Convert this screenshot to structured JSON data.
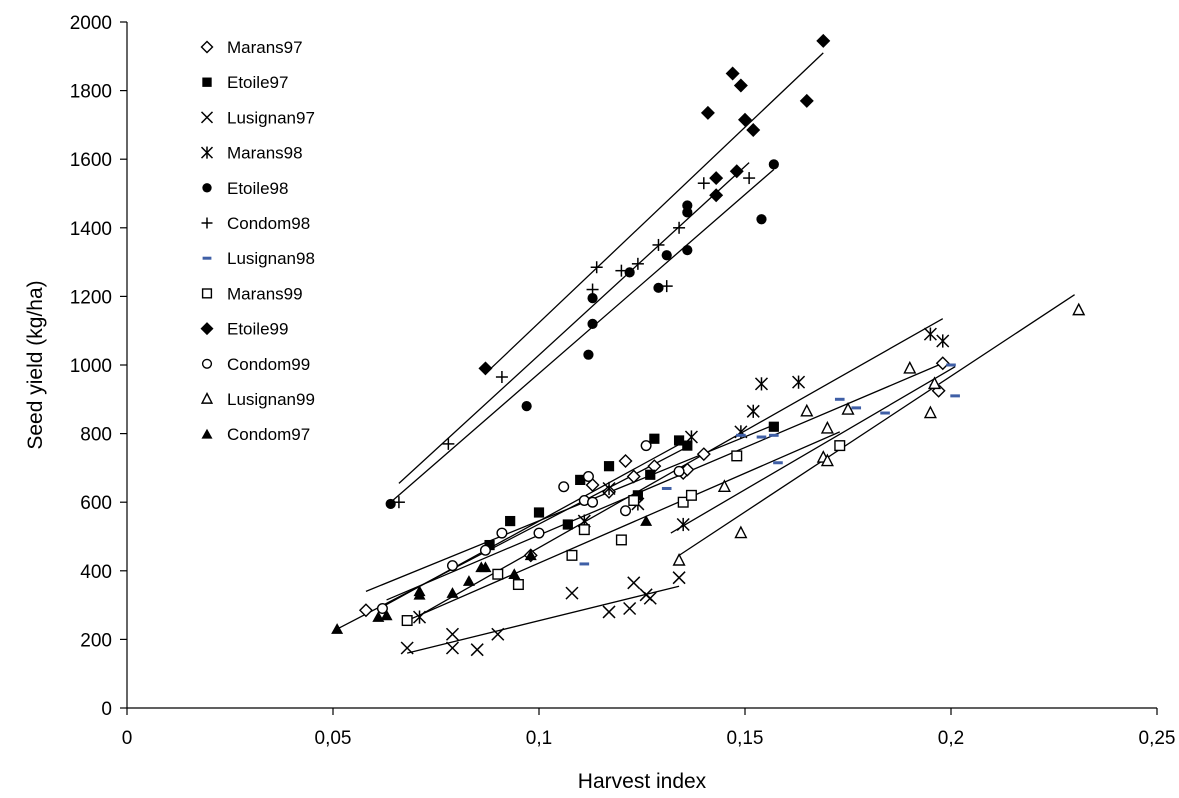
{
  "chart_data": {
    "type": "scatter",
    "title": "",
    "xlabel": "Harvest index",
    "ylabel": "Seed yield (kg/ha)",
    "xlim": [
      0,
      0.25
    ],
    "ylim": [
      0,
      2000
    ],
    "x_ticks": [
      "0",
      "0,05",
      "0,1",
      "0,15",
      "0,2",
      "0,25"
    ],
    "x_tick_values": [
      0,
      0.05,
      0.1,
      0.15,
      0.2,
      0.25
    ],
    "y_ticks": [
      "0",
      "200",
      "400",
      "600",
      "800",
      "1000",
      "1200",
      "1400",
      "1600",
      "1800",
      "2000"
    ],
    "y_tick_values": [
      0,
      200,
      400,
      600,
      800,
      1000,
      1200,
      1400,
      1600,
      1800,
      2000
    ],
    "grid": false,
    "legend_position": "top-left",
    "series": [
      {
        "name": "Marans97",
        "marker": "diamond-open",
        "points": [
          [
            0.058,
            285
          ],
          [
            0.098,
            445
          ],
          [
            0.113,
            650
          ],
          [
            0.117,
            630
          ],
          [
            0.121,
            720
          ],
          [
            0.123,
            675
          ],
          [
            0.128,
            705
          ],
          [
            0.135,
            685
          ],
          [
            0.136,
            695
          ],
          [
            0.14,
            740
          ],
          [
            0.197,
            925
          ],
          [
            0.198,
            1005
          ]
        ],
        "trend": [
          [
            0.063,
            315
          ],
          [
            0.198,
            1005
          ]
        ]
      },
      {
        "name": "Etoile97",
        "marker": "square-filled",
        "points": [
          [
            0.088,
            475
          ],
          [
            0.093,
            545
          ],
          [
            0.1,
            570
          ],
          [
            0.107,
            535
          ],
          [
            0.11,
            665
          ],
          [
            0.117,
            705
          ],
          [
            0.124,
            620
          ],
          [
            0.127,
            680
          ],
          [
            0.128,
            785
          ],
          [
            0.134,
            780
          ],
          [
            0.136,
            765
          ],
          [
            0.157,
            820
          ]
        ],
        "trend": [
          [
            0.058,
            340
          ],
          [
            0.157,
            825
          ]
        ]
      },
      {
        "name": "Lusignan97",
        "marker": "x",
        "points": [
          [
            0.068,
            175
          ],
          [
            0.079,
            215
          ],
          [
            0.079,
            175
          ],
          [
            0.085,
            170
          ],
          [
            0.09,
            215
          ],
          [
            0.108,
            335
          ],
          [
            0.117,
            280
          ],
          [
            0.122,
            290
          ],
          [
            0.123,
            365
          ],
          [
            0.126,
            330
          ],
          [
            0.127,
            320
          ],
          [
            0.134,
            380
          ]
        ],
        "trend": [
          [
            0.068,
            160
          ],
          [
            0.134,
            355
          ]
        ]
      },
      {
        "name": "Marans98",
        "marker": "asterisk",
        "points": [
          [
            0.071,
            265
          ],
          [
            0.111,
            545
          ],
          [
            0.117,
            640
          ],
          [
            0.124,
            595
          ],
          [
            0.135,
            535
          ],
          [
            0.137,
            790
          ],
          [
            0.149,
            805
          ],
          [
            0.152,
            865
          ],
          [
            0.154,
            945
          ],
          [
            0.163,
            950
          ],
          [
            0.195,
            1090
          ],
          [
            0.198,
            1070
          ]
        ],
        "trend": [
          [
            0.071,
            270
          ],
          [
            0.198,
            1135
          ]
        ]
      },
      {
        "name": "Etoile98",
        "marker": "circle-filled",
        "points": [
          [
            0.064,
            595
          ],
          [
            0.097,
            880
          ],
          [
            0.112,
            1030
          ],
          [
            0.113,
            1195
          ],
          [
            0.113,
            1120
          ],
          [
            0.122,
            1270
          ],
          [
            0.129,
            1225
          ],
          [
            0.131,
            1320
          ],
          [
            0.136,
            1335
          ],
          [
            0.136,
            1445
          ],
          [
            0.136,
            1465
          ],
          [
            0.154,
            1425
          ],
          [
            0.157,
            1585
          ]
        ],
        "trend": [
          [
            0.064,
            600
          ],
          [
            0.157,
            1570
          ]
        ]
      },
      {
        "name": "Condom98",
        "marker": "plus",
        "points": [
          [
            0.066,
            600
          ],
          [
            0.078,
            770
          ],
          [
            0.091,
            965
          ],
          [
            0.113,
            1220
          ],
          [
            0.114,
            1285
          ],
          [
            0.12,
            1275
          ],
          [
            0.124,
            1295
          ],
          [
            0.129,
            1350
          ],
          [
            0.131,
            1230
          ],
          [
            0.134,
            1400
          ],
          [
            0.14,
            1530
          ],
          [
            0.151,
            1545
          ]
        ],
        "trend": [
          [
            0.066,
            655
          ],
          [
            0.151,
            1590
          ]
        ]
      },
      {
        "name": "Lusignan98",
        "marker": "dash",
        "points": [
          [
            0.111,
            420
          ],
          [
            0.131,
            640
          ],
          [
            0.149,
            795
          ],
          [
            0.154,
            790
          ],
          [
            0.157,
            795
          ],
          [
            0.158,
            715
          ],
          [
            0.165,
            855
          ],
          [
            0.173,
            900
          ],
          [
            0.177,
            875
          ],
          [
            0.184,
            860
          ],
          [
            0.196,
            940
          ],
          [
            0.2,
            1000
          ],
          [
            0.201,
            910
          ]
        ],
        "trend": [
          [
            0.132,
            510
          ],
          [
            0.201,
            995
          ]
        ]
      },
      {
        "name": "Marans99",
        "marker": "square-open",
        "points": [
          [
            0.068,
            255
          ],
          [
            0.09,
            390
          ],
          [
            0.095,
            360
          ],
          [
            0.108,
            445
          ],
          [
            0.111,
            520
          ],
          [
            0.12,
            490
          ],
          [
            0.123,
            605
          ],
          [
            0.135,
            600
          ],
          [
            0.137,
            620
          ],
          [
            0.148,
            735
          ],
          [
            0.173,
            765
          ]
        ],
        "trend": [
          [
            0.068,
            255
          ],
          [
            0.173,
            805
          ]
        ]
      },
      {
        "name": "Etoile99",
        "marker": "diamond-filled",
        "points": [
          [
            0.087,
            990
          ],
          [
            0.141,
            1735
          ],
          [
            0.143,
            1545
          ],
          [
            0.143,
            1495
          ],
          [
            0.147,
            1850
          ],
          [
            0.148,
            1565
          ],
          [
            0.149,
            1815
          ],
          [
            0.15,
            1715
          ],
          [
            0.152,
            1685
          ],
          [
            0.165,
            1770
          ],
          [
            0.169,
            1945
          ]
        ],
        "trend": [
          [
            0.087,
            975
          ],
          [
            0.169,
            1910
          ]
        ]
      },
      {
        "name": "Condom99",
        "marker": "circle-open",
        "points": [
          [
            0.062,
            290
          ],
          [
            0.079,
            415
          ],
          [
            0.087,
            460
          ],
          [
            0.091,
            510
          ],
          [
            0.1,
            510
          ],
          [
            0.106,
            645
          ],
          [
            0.111,
            605
          ],
          [
            0.112,
            675
          ],
          [
            0.113,
            600
          ],
          [
            0.121,
            575
          ],
          [
            0.126,
            765
          ],
          [
            0.134,
            690
          ]
        ],
        "trend": [
          [
            0.062,
            295
          ],
          [
            0.135,
            775
          ]
        ]
      },
      {
        "name": "Lusignan99",
        "marker": "triangle-open",
        "points": [
          [
            0.134,
            430
          ],
          [
            0.149,
            510
          ],
          [
            0.145,
            645
          ],
          [
            0.165,
            865
          ],
          [
            0.169,
            730
          ],
          [
            0.17,
            720
          ],
          [
            0.17,
            815
          ],
          [
            0.175,
            870
          ],
          [
            0.19,
            990
          ],
          [
            0.195,
            860
          ],
          [
            0.196,
            945
          ],
          [
            0.231,
            1160
          ]
        ],
        "trend": [
          [
            0.134,
            445
          ],
          [
            0.23,
            1205
          ]
        ]
      },
      {
        "name": "Condom97",
        "marker": "triangle-filled",
        "points": [
          [
            0.051,
            230
          ],
          [
            0.061,
            265
          ],
          [
            0.063,
            270
          ],
          [
            0.071,
            330
          ],
          [
            0.071,
            340
          ],
          [
            0.079,
            335
          ],
          [
            0.083,
            370
          ],
          [
            0.086,
            410
          ],
          [
            0.087,
            410
          ],
          [
            0.094,
            390
          ],
          [
            0.098,
            445
          ],
          [
            0.126,
            545
          ]
        ],
        "trend": [
          [
            0.051,
            230
          ],
          [
            0.135,
            755
          ]
        ]
      }
    ]
  }
}
